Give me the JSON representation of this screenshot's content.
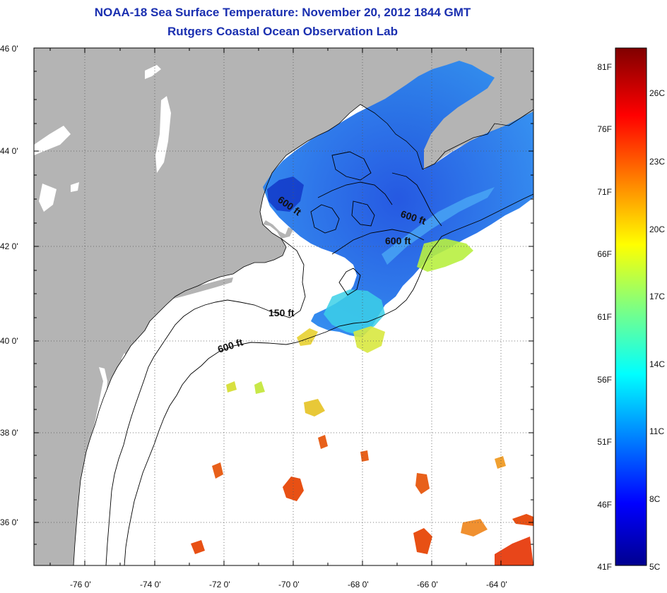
{
  "title": {
    "line1": "NOAA-18 Sea Surface Temperature:  November 20, 2012 1844 GMT",
    "line2": "Rutgers Coastal Ocean Observation Lab"
  },
  "map": {
    "lat_labels": [
      "46 0'",
      "44 0'",
      "42 0'",
      "40 0'",
      "38 0'",
      "36 0'"
    ],
    "lon_labels": [
      "-76 0'",
      "-74 0'",
      "-72 0'",
      "-70 0'",
      "-68 0'",
      "-66 0'",
      "-64 0'"
    ],
    "depth_labels": [
      "600 ft",
      "600 ft",
      "600 ft",
      "150 ft",
      "600 ft"
    ],
    "colors": {
      "land": "#b4b4b4",
      "ocean_nodata": "#ffffff",
      "cold_water": "#1e64f0",
      "warm_water": "#e65014"
    }
  },
  "colorbar": {
    "fahrenheit_labels": [
      "81F",
      "76F",
      "71F",
      "66F",
      "61F",
      "56F",
      "51F",
      "46F",
      "41F"
    ],
    "celsius_labels": [
      "26C",
      "23C",
      "20C",
      "17C",
      "14C",
      "11C",
      "8C",
      "5C"
    ]
  }
}
